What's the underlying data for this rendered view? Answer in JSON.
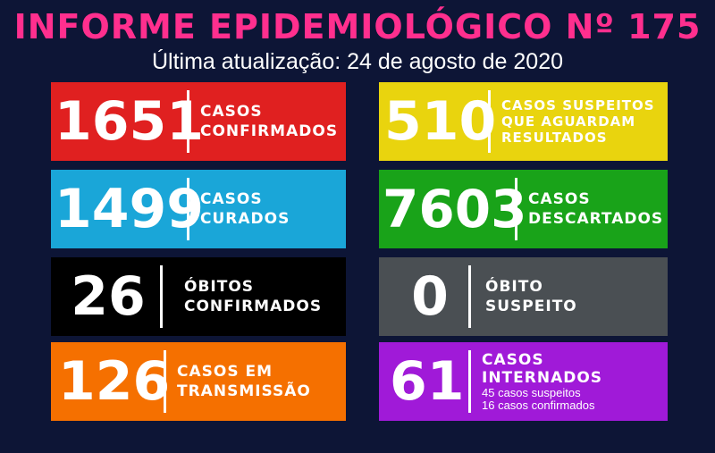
{
  "header": {
    "title": "INFORME EPIDEMIOLÓGICO Nº 175",
    "subtitle": "Última atualização: 24 de agosto de 2020"
  },
  "cards": [
    {
      "number": "1651",
      "label": "CASOS\nCONFIRMADOS",
      "color": "#e02020"
    },
    {
      "number": "510",
      "label": "CASOS SUSPEITOS\nQUE AGUARDAM\nRESULTADOS",
      "color": "#e9d40e"
    },
    {
      "number": "1499",
      "label": "CASOS\nCURADOS",
      "color": "#1aa6d8"
    },
    {
      "number": "7603",
      "label": "CASOS\nDESCARTADOS",
      "color": "#19a319"
    },
    {
      "number": "26",
      "label": "ÓBITOS\nCONFIRMADOS",
      "color": "#000000"
    },
    {
      "number": "0",
      "label": "ÓBITO\nSUSPEITO",
      "color": "#4a4f53"
    },
    {
      "number": "126",
      "label": "CASOS EM\nTRANSMISSÃO",
      "color": "#f57000"
    },
    {
      "number": "61",
      "label": "CASOS INTERNADOS",
      "detail_1": "45 casos suspeitos",
      "detail_2": "16 casos confirmados",
      "color": "#a01ad8"
    }
  ]
}
